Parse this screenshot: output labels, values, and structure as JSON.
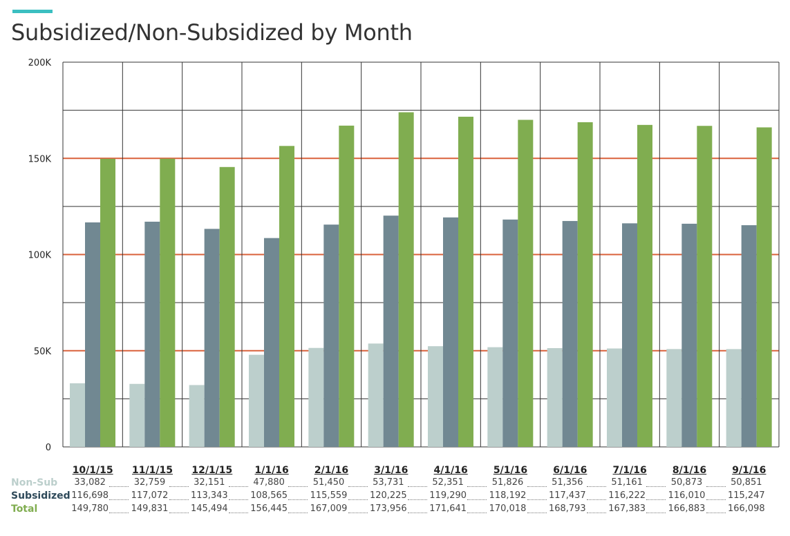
{
  "title": "Subsidized/Non-Subsidized by Month",
  "colors": {
    "accent_bar": "#3bbfc1",
    "non_sub": "#bccfcc",
    "subsidized": "#718892",
    "total": "#80ad50",
    "major_grid": "#d9613a",
    "minor_grid": "#333333"
  },
  "chart_data": {
    "type": "bar",
    "title": "Subsidized/Non-Subsidized by Month",
    "categories": [
      "10/1/15",
      "11/1/15",
      "12/1/15",
      "1/1/16",
      "2/1/16",
      "3/1/16",
      "4/1/16",
      "5/1/16",
      "6/1/16",
      "7/1/16",
      "8/1/16",
      "9/1/16"
    ],
    "series": [
      {
        "name": "Non-Sub",
        "color": "#bccfcc",
        "values": [
          33082,
          32759,
          32151,
          47880,
          51450,
          53731,
          52351,
          51826,
          51356,
          51161,
          50873,
          50851
        ],
        "labels": [
          "33,082",
          "32,759",
          "32,151",
          "47,880",
          "51,450",
          "53,731",
          "52,351",
          "51,826",
          "51,356",
          "51,161",
          "50,873",
          "50,851"
        ]
      },
      {
        "name": "Subsidized",
        "color": "#718892",
        "values": [
          116698,
          117072,
          113343,
          108565,
          115559,
          120225,
          119290,
          118192,
          117437,
          116222,
          116010,
          115247
        ],
        "labels": [
          "116,698",
          "117,072",
          "113,343",
          "108,565",
          "115,559",
          "120,225",
          "119,290",
          "118,192",
          "117,437",
          "116,222",
          "116,010",
          "115,247"
        ]
      },
      {
        "name": "Total",
        "color": "#80ad50",
        "values": [
          149780,
          149831,
          145494,
          156445,
          167009,
          173956,
          171641,
          170018,
          168793,
          167383,
          166883,
          166098
        ],
        "labels": [
          "149,780",
          "149,831",
          "145,494",
          "156,445",
          "167,009",
          "173,956",
          "171,641",
          "170,018",
          "168,793",
          "167,383",
          "166,883",
          "166,098"
        ]
      }
    ],
    "ylim": [
      0,
      200000
    ],
    "yticks": [
      0,
      50000,
      100000,
      150000,
      200000
    ],
    "ytick_labels": [
      "0",
      "50K",
      "100K",
      "150K",
      "200K"
    ],
    "grid": true,
    "legend": "table-below"
  }
}
